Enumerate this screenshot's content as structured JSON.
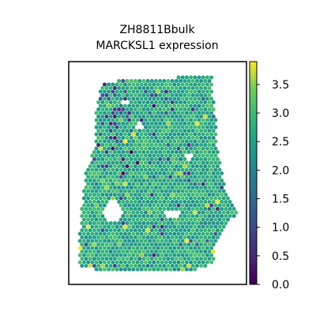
{
  "chart_data": {
    "type": "scatter",
    "title_lines": [
      "ZH8811Bbulk",
      "MARCKSL1 expression"
    ],
    "xlabel": "",
    "ylabel": "",
    "colormap": "viridis",
    "color_range": [
      0.0,
      3.9
    ],
    "colorbar_ticks": [
      "0.0",
      "0.5",
      "1.0",
      "1.5",
      "2.0",
      "2.5",
      "3.0",
      "3.5"
    ],
    "colorbar_tick_values": [
      0.0,
      0.5,
      1.0,
      1.5,
      2.0,
      2.5,
      3.0,
      3.5
    ],
    "typical_expression": 2.7,
    "low_expression_region": "upper-left",
    "grid": false,
    "axes_ticks_visible": false
  }
}
